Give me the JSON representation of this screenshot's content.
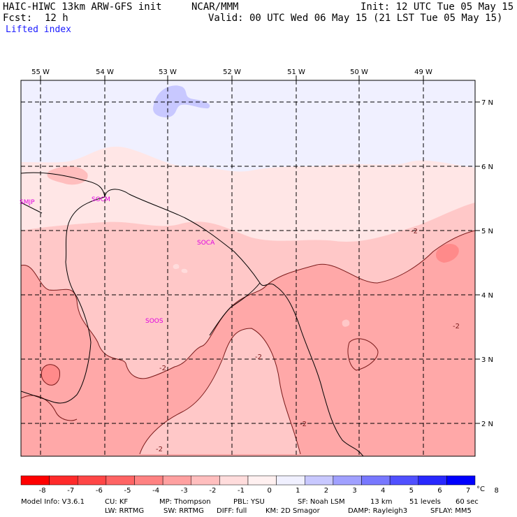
{
  "header": {
    "model": "HAIC-HIWC 13km ARW-GFS init",
    "org": "NCAR/MMM",
    "init": "Init: 12 UTC Tue 05 May 15",
    "fcst_label": "Fcst:",
    "fcst_value": "12 h",
    "valid": "Valid: 00 UTC Wed 06 May 15 (21 LST Tue 05 May 15)",
    "field": "Lifted index"
  },
  "axes": {
    "lon_labels": [
      "55 W",
      "54 W",
      "53 W",
      "52 W",
      "51 W",
      "50 W",
      "49 W"
    ],
    "lat_labels": [
      "7 N",
      "6 N",
      "5 N",
      "4 N",
      "3 N",
      "2 N"
    ]
  },
  "stations": [
    "SMJP",
    "SOCM",
    "SOCA",
    "SOOS"
  ],
  "contour_labels": [
    "-2",
    "-2",
    "-2",
    "-2",
    "-2",
    "-2"
  ],
  "colorbar": {
    "ticks": [
      "-8",
      "-7",
      "-6",
      "-5",
      "-4",
      "-3",
      "-2",
      "-1",
      "0",
      "1",
      "2",
      "3",
      "4",
      "5",
      "6",
      "7",
      "8"
    ],
    "unit": "°C",
    "colors": [
      "#ff0000",
      "#ff2a2a",
      "#ff4646",
      "#ff6464",
      "#ff8282",
      "#ffa0a0",
      "#ffbebe",
      "#ffdcdc",
      "#fff0f0",
      "#f0f0ff",
      "#c8c8ff",
      "#a0a0ff",
      "#7878ff",
      "#5050ff",
      "#2828ff",
      "#0000ff"
    ]
  },
  "footer": {
    "line1": [
      "Model Info: V3.6.1",
      "CU: KF",
      "MP: Thompson",
      "PBL: YSU",
      "SF: Noah LSM",
      "13 km",
      "51 levels",
      "60 sec"
    ],
    "line2": [
      "LW: RRTMG",
      "SW: RRTMG",
      "DIFF: full",
      "KM: 2D Smagor",
      "DAMP: Rayleigh3",
      "SFLAY: MM5"
    ]
  }
}
